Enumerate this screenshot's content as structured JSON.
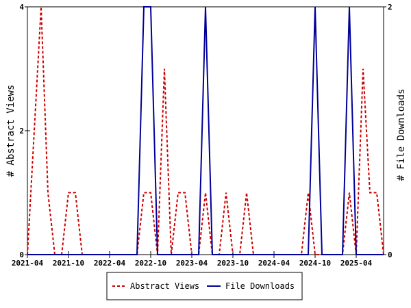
{
  "chart_data": {
    "type": "line",
    "x": [
      "2021-04",
      "2021-05",
      "2021-06",
      "2021-07",
      "2021-08",
      "2021-09",
      "2021-10",
      "2021-11",
      "2021-12",
      "2022-01",
      "2022-02",
      "2022-03",
      "2022-04",
      "2022-05",
      "2022-06",
      "2022-07",
      "2022-08",
      "2022-09",
      "2022-10",
      "2022-11",
      "2022-12",
      "2023-01",
      "2023-02",
      "2023-03",
      "2023-04",
      "2023-05",
      "2023-06",
      "2023-07",
      "2023-08",
      "2023-09",
      "2023-10",
      "2023-11",
      "2023-12",
      "2024-01",
      "2024-02",
      "2024-03",
      "2024-04",
      "2024-05",
      "2024-06",
      "2024-07",
      "2024-08",
      "2024-09",
      "2024-10",
      "2024-11",
      "2024-12",
      "2025-01",
      "2025-02",
      "2025-03",
      "2025-04",
      "2025-05",
      "2025-06",
      "2025-07",
      "2025-08"
    ],
    "x_ticks": [
      "2021-04",
      "2021-10",
      "2022-04",
      "2022-10",
      "2023-04",
      "2023-10",
      "2024-04",
      "2024-10",
      "2025-04"
    ],
    "ylabel": "# Abstract Views",
    "y2label": "# File Downloads",
    "ylim": [
      0,
      4
    ],
    "y_ticks": [
      0,
      2,
      4
    ],
    "y2lim": [
      0,
      2
    ],
    "y2_ticks": [
      0,
      2
    ],
    "legend_position": "bottom",
    "grid": false,
    "series": [
      {
        "name": "Abstract Views",
        "axis": "left",
        "color": "#cc0000",
        "style": "dashed",
        "values": [
          0,
          2,
          4,
          1,
          0,
          0,
          1,
          1,
          0,
          0,
          0,
          0,
          0,
          0,
          0,
          0,
          0,
          1,
          1,
          0,
          3,
          0,
          1,
          1,
          0,
          0,
          1,
          0,
          0,
          1,
          0,
          0,
          1,
          0,
          0,
          0,
          0,
          0,
          0,
          0,
          0,
          1,
          0,
          0,
          0,
          0,
          0,
          1,
          0,
          3,
          1,
          1,
          0
        ]
      },
      {
        "name": "File Downloads",
        "axis": "right",
        "color": "#000099",
        "style": "solid",
        "values": [
          0,
          0,
          0,
          0,
          0,
          0,
          0,
          0,
          0,
          0,
          0,
          0,
          0,
          0,
          0,
          0,
          0,
          2,
          2,
          0,
          0,
          0,
          0,
          0,
          0,
          0,
          2,
          0,
          0,
          0,
          0,
          0,
          0,
          0,
          0,
          0,
          0,
          0,
          0,
          0,
          0,
          0,
          2,
          0,
          0,
          0,
          0,
          2,
          0,
          0,
          0,
          0,
          0
        ]
      }
    ]
  }
}
